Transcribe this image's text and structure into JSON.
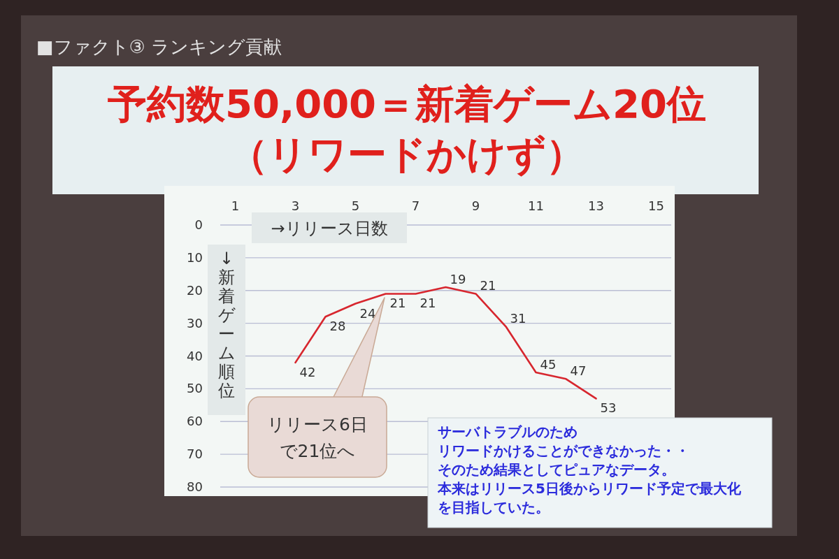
{
  "chart_data": {
    "type": "line",
    "title": "■ファクト③ ランキング貢献",
    "subtitle": "予約数50,000＝新着ゲーム20位（リワードかけず）",
    "xlabel": "→リリース日数",
    "ylabel": "↓新着ゲーム順位",
    "x": [
      3,
      4,
      5,
      6,
      7,
      8,
      9,
      10,
      11,
      12,
      13
    ],
    "series": [
      {
        "color": "#d7262e",
        "values": [
          42,
          28,
          24,
          21,
          21,
          19,
          21,
          31,
          45,
          47,
          53
        ]
      }
    ],
    "xlim": [
      0.5,
      15.5
    ],
    "xticks": [
      1,
      3,
      5,
      7,
      9,
      11,
      13,
      15
    ],
    "ylim": [
      80,
      0
    ],
    "yticks": [
      0,
      10,
      20,
      30,
      40,
      50,
      60,
      70,
      80
    ],
    "grid": "y",
    "data_labels": true,
    "annotations": [
      "リリース6日で21位へ",
      "サーバトラブルのため",
      "リワードかけることができなかった・・",
      "そのため結果としてピュアなデータ。",
      "本来はリリース5日後からリワード予定で最大化を目指していた。"
    ]
  }
}
